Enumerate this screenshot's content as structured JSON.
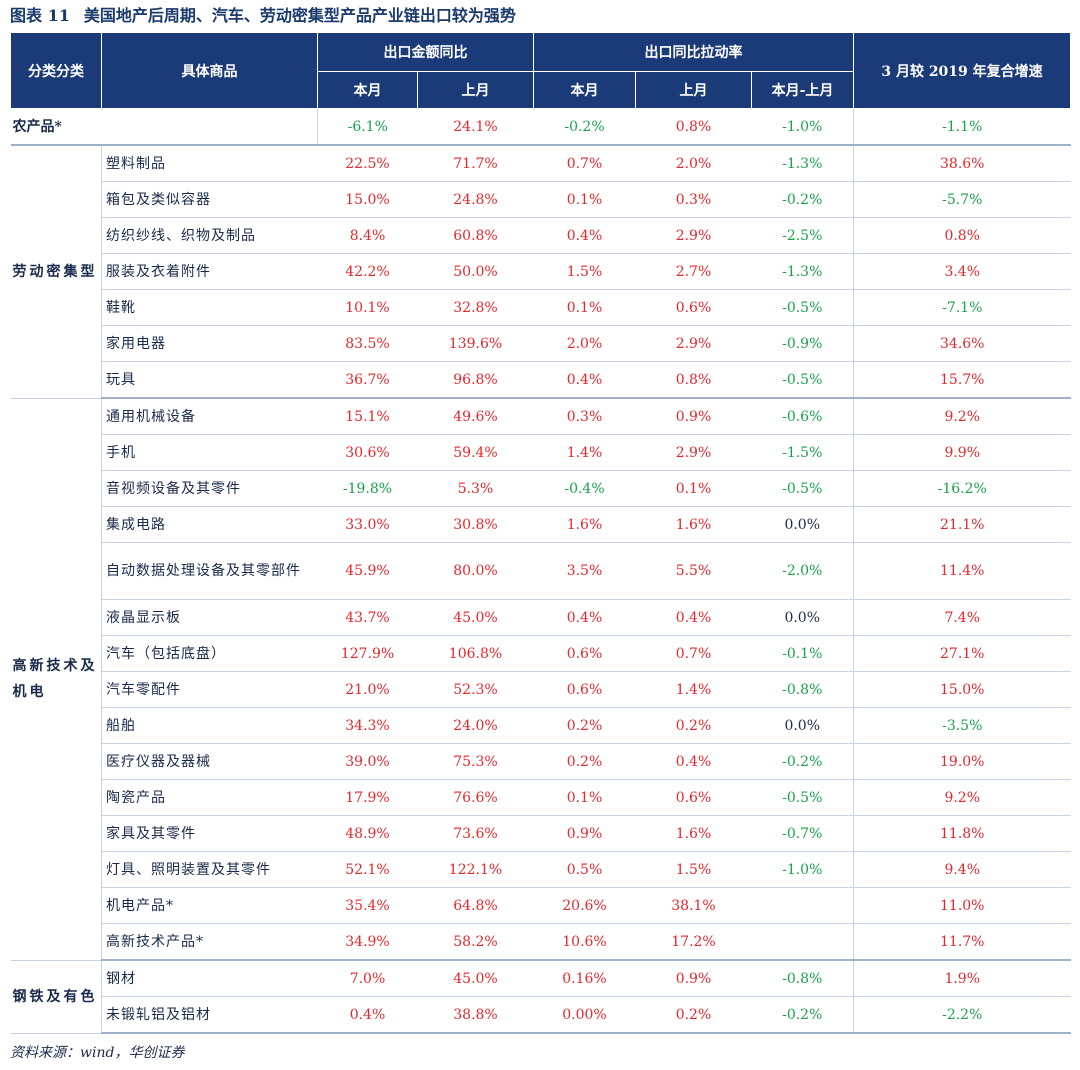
{
  "title": {
    "label": "图表 11",
    "text": "美国地产后周期、汽车、劳动密集型产品产业链出口较为强势"
  },
  "headers": {
    "category": "分类分类",
    "product": "具体商品",
    "export_yoy": "出口金额同比",
    "export_pull": "出口同比拉动率",
    "cagr": "3 月较 2019 年复合增速",
    "this_month": "本月",
    "last_month": "上月",
    "diff": "本月-上月"
  },
  "rows": [
    {
      "category": "农产品*",
      "product": "",
      "v": [
        "-6.1%",
        "24.1%",
        "-0.2%",
        "0.8%",
        "-1.0%",
        "-1.1%"
      ]
    },
    {
      "category": "劳动密集型",
      "product": "塑料制品",
      "v": [
        "22.5%",
        "71.7%",
        "0.7%",
        "2.0%",
        "-1.3%",
        "38.6%"
      ]
    },
    {
      "product": "箱包及类似容器",
      "v": [
        "15.0%",
        "24.8%",
        "0.1%",
        "0.3%",
        "-0.2%",
        "-5.7%"
      ]
    },
    {
      "product": "纺织纱线、织物及制品",
      "v": [
        "8.4%",
        "60.8%",
        "0.4%",
        "2.9%",
        "-2.5%",
        "0.8%"
      ]
    },
    {
      "product": "服装及衣着附件",
      "v": [
        "42.2%",
        "50.0%",
        "1.5%",
        "2.7%",
        "-1.3%",
        "3.4%"
      ]
    },
    {
      "product": "鞋靴",
      "v": [
        "10.1%",
        "32.8%",
        "0.1%",
        "0.6%",
        "-0.5%",
        "-7.1%"
      ]
    },
    {
      "product": "家用电器",
      "v": [
        "83.5%",
        "139.6%",
        "2.0%",
        "2.9%",
        "-0.9%",
        "34.6%"
      ]
    },
    {
      "product": "玩具",
      "v": [
        "36.7%",
        "96.8%",
        "0.4%",
        "0.8%",
        "-0.5%",
        "15.7%"
      ]
    },
    {
      "category": "高新技术及机电",
      "product": "通用机械设备",
      "v": [
        "15.1%",
        "49.6%",
        "0.3%",
        "0.9%",
        "-0.6%",
        "9.2%"
      ]
    },
    {
      "product": "手机",
      "v": [
        "30.6%",
        "59.4%",
        "1.4%",
        "2.9%",
        "-1.5%",
        "9.9%"
      ]
    },
    {
      "product": "音视频设备及其零件",
      "v": [
        "-19.8%",
        "5.3%",
        "-0.4%",
        "0.1%",
        "-0.5%",
        "-16.2%"
      ]
    },
    {
      "product": "集成电路",
      "v": [
        "33.0%",
        "30.8%",
        "1.6%",
        "1.6%",
        "0.0%",
        "21.1%"
      ]
    },
    {
      "product": "自动数据处理设备及其零部件",
      "v": [
        "45.9%",
        "80.0%",
        "3.5%",
        "5.5%",
        "-2.0%",
        "11.4%"
      ]
    },
    {
      "product": "液晶显示板",
      "v": [
        "43.7%",
        "45.0%",
        "0.4%",
        "0.4%",
        "0.0%",
        "7.4%"
      ]
    },
    {
      "product": "汽车（包括底盘）",
      "v": [
        "127.9%",
        "106.8%",
        "0.6%",
        "0.7%",
        "-0.1%",
        "27.1%"
      ]
    },
    {
      "product": "汽车零配件",
      "v": [
        "21.0%",
        "52.3%",
        "0.6%",
        "1.4%",
        "-0.8%",
        "15.0%"
      ]
    },
    {
      "product": "船舶",
      "v": [
        "34.3%",
        "24.0%",
        "0.2%",
        "0.2%",
        "0.0%",
        "-3.5%"
      ]
    },
    {
      "product": "医疗仪器及器械",
      "v": [
        "39.0%",
        "75.3%",
        "0.2%",
        "0.4%",
        "-0.2%",
        "19.0%"
      ]
    },
    {
      "product": "陶瓷产品",
      "v": [
        "17.9%",
        "76.6%",
        "0.1%",
        "0.6%",
        "-0.5%",
        "9.2%"
      ]
    },
    {
      "product": "家具及其零件",
      "v": [
        "48.9%",
        "73.6%",
        "0.9%",
        "1.6%",
        "-0.7%",
        "11.8%"
      ]
    },
    {
      "product": "灯具、照明装置及其零件",
      "v": [
        "52.1%",
        "122.1%",
        "0.5%",
        "1.5%",
        "-1.0%",
        "9.4%"
      ]
    },
    {
      "product": "机电产品*",
      "v": [
        "35.4%",
        "64.8%",
        "20.6%",
        "38.1%",
        "",
        "11.0%"
      ]
    },
    {
      "product": "高新技术产品*",
      "v": [
        "34.9%",
        "58.2%",
        "10.6%",
        "17.2%",
        "",
        "11.7%"
      ]
    },
    {
      "category": "钢铁及有色",
      "product": "钢材",
      "v": [
        "7.0%",
        "45.0%",
        "0.16%",
        "0.9%",
        "-0.8%",
        "1.9%"
      ]
    },
    {
      "product": "未锻轧铝及铝材",
      "v": [
        "0.4%",
        "38.8%",
        "0.00%",
        "0.2%",
        "-0.2%",
        "-2.2%"
      ]
    }
  ],
  "source": "资料来源：wind，华创证券"
}
